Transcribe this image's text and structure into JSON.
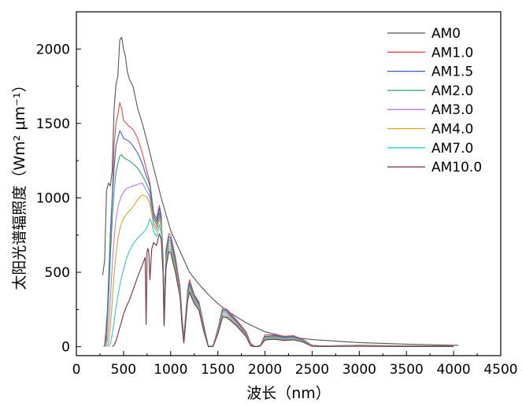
{
  "chart_data": {
    "type": "line",
    "title": "",
    "xlabel": "波长（nm）",
    "ylabel": "太阳光谱辐照度（Wm² μm⁻¹）",
    "xlim": [
      0,
      4500
    ],
    "ylim": [
      -60,
      2250
    ],
    "xticks": [
      0,
      500,
      1000,
      1500,
      2000,
      2500,
      3000,
      3500,
      4000,
      4500
    ],
    "yticks": [
      0,
      500,
      1000,
      1500,
      2000
    ],
    "grid": false,
    "legend_position": "top-right",
    "series": [
      {
        "name": "AM0",
        "color": "#555555",
        "x": [
          280,
          300,
          320,
          340,
          360,
          380,
          400,
          420,
          440,
          460,
          480,
          500,
          520,
          540,
          560,
          600,
          650,
          700,
          750,
          800,
          900,
          1000,
          1100,
          1200,
          1300,
          1400,
          1500,
          1600,
          1800,
          2000,
          2200,
          2500,
          3000,
          3500,
          4000,
          4050
        ],
        "y": [
          480,
          580,
          1050,
          1100,
          1080,
          1180,
          1600,
          1760,
          1820,
          2060,
          2080,
          2000,
          1950,
          1850,
          1800,
          1750,
          1600,
          1500,
          1380,
          1250,
          1000,
          780,
          640,
          500,
          420,
          350,
          290,
          240,
          160,
          100,
          70,
          48,
          28,
          17,
          10,
          10
        ]
      },
      {
        "name": "AM1.0",
        "color": "#e84a4a",
        "x": [
          290,
          300,
          330,
          360,
          380,
          400,
          420,
          440,
          460,
          480,
          500,
          530,
          560,
          600,
          650,
          700,
          740,
          760,
          780,
          800,
          820,
          850,
          880,
          900,
          920,
          930,
          950,
          980,
          1000,
          1050,
          1100,
          1120,
          1140,
          1180,
          1200,
          1250,
          1300,
          1350,
          1400,
          1450,
          1500,
          1550,
          1600,
          1700,
          1800,
          1850,
          1900,
          1950,
          2000,
          2100,
          2200,
          2300,
          2400,
          2500,
          2600,
          3000,
          3500,
          4000
        ],
        "y": [
          0,
          10,
          250,
          700,
          1000,
          1350,
          1500,
          1560,
          1640,
          1600,
          1520,
          1500,
          1480,
          1460,
          1400,
          1300,
          1200,
          1150,
          1100,
          1000,
          900,
          860,
          950,
          880,
          600,
          200,
          650,
          760,
          750,
          600,
          400,
          200,
          60,
          380,
          450,
          350,
          300,
          150,
          0,
          5,
          120,
          260,
          250,
          180,
          100,
          20,
          0,
          10,
          80,
          80,
          70,
          75,
          50,
          10,
          5,
          10,
          5,
          5
        ]
      },
      {
        "name": "AM1.5",
        "color": "#3a5fcd",
        "x": [
          300,
          320,
          340,
          360,
          380,
          400,
          420,
          440,
          460,
          480,
          500,
          530,
          560,
          600,
          650,
          700,
          740,
          760,
          780,
          800,
          820,
          850,
          880,
          900,
          920,
          930,
          950,
          980,
          1000,
          1050,
          1100,
          1120,
          1140,
          1180,
          1200,
          1250,
          1300,
          1350,
          1400,
          1450,
          1500,
          1550,
          1600,
          1700,
          1800,
          1850,
          1900,
          1950,
          2000,
          2100,
          2200,
          2300,
          2400,
          2500,
          2600,
          3000,
          3500,
          4000
        ],
        "y": [
          5,
          80,
          400,
          750,
          1000,
          1200,
          1350,
          1400,
          1450,
          1430,
          1400,
          1390,
          1380,
          1350,
          1300,
          1230,
          1150,
          1120,
          1080,
          980,
          880,
          840,
          930,
          860,
          580,
          190,
          630,
          740,
          730,
          580,
          380,
          190,
          50,
          370,
          430,
          340,
          290,
          140,
          0,
          5,
          110,
          250,
          240,
          170,
          90,
          15,
          0,
          8,
          70,
          75,
          65,
          70,
          45,
          8,
          5,
          8,
          4,
          4
        ]
      },
      {
        "name": "AM2.0",
        "color": "#2ea66e",
        "x": [
          300,
          320,
          340,
          360,
          380,
          400,
          420,
          440,
          460,
          480,
          500,
          530,
          560,
          600,
          650,
          700,
          740,
          760,
          780,
          800,
          820,
          850,
          880,
          900,
          920,
          930,
          950,
          980,
          1000,
          1050,
          1100,
          1120,
          1140,
          1180,
          1200,
          1250,
          1300,
          1350,
          1400,
          1450,
          1500,
          1550,
          1600,
          1700,
          1800,
          1850,
          1900,
          1950,
          2000,
          2100,
          2200,
          2300,
          2400,
          2500,
          2600,
          3000,
          3500,
          4000
        ],
        "y": [
          2,
          50,
          300,
          600,
          850,
          1050,
          1170,
          1230,
          1280,
          1290,
          1270,
          1260,
          1250,
          1230,
          1200,
          1150,
          1100,
          1070,
          1040,
          950,
          860,
          820,
          900,
          840,
          560,
          180,
          610,
          720,
          710,
          560,
          370,
          180,
          45,
          355,
          415,
          330,
          280,
          130,
          0,
          5,
          105,
          240,
          230,
          165,
          85,
          12,
          0,
          8,
          65,
          70,
          60,
          65,
          42,
          7,
          4,
          7,
          4,
          4
        ]
      },
      {
        "name": "AM3.0",
        "color": "#b77be6",
        "x": [
          310,
          330,
          350,
          370,
          390,
          410,
          430,
          450,
          470,
          500,
          530,
          560,
          600,
          650,
          700,
          740,
          760,
          780,
          800,
          820,
          850,
          880,
          900,
          920,
          930,
          950,
          980,
          1000,
          1050,
          1100,
          1120,
          1140,
          1180,
          1200,
          1250,
          1300,
          1350,
          1400,
          1450,
          1500,
          1550,
          1600,
          1700,
          1800,
          1850,
          1900,
          1950,
          2000,
          2100,
          2200,
          2300,
          2400,
          2500,
          2600,
          3000,
          3500,
          4000
        ],
        "y": [
          0,
          40,
          200,
          430,
          640,
          800,
          900,
          960,
          1000,
          1040,
          1060,
          1070,
          1080,
          1090,
          1100,
          1050,
          1030,
          1000,
          920,
          830,
          800,
          880,
          820,
          540,
          170,
          590,
          700,
          690,
          540,
          360,
          170,
          40,
          340,
          400,
          320,
          270,
          120,
          0,
          4,
          100,
          230,
          220,
          160,
          80,
          10,
          0,
          7,
          60,
          65,
          55,
          60,
          40,
          6,
          4,
          6,
          3,
          3
        ]
      },
      {
        "name": "AM4.0",
        "color": "#d6a520",
        "x": [
          320,
          340,
          360,
          380,
          400,
          420,
          440,
          460,
          480,
          500,
          530,
          560,
          600,
          650,
          700,
          740,
          760,
          780,
          800,
          820,
          850,
          880,
          900,
          920,
          930,
          950,
          980,
          1000,
          1050,
          1100,
          1120,
          1140,
          1180,
          1200,
          1250,
          1300,
          1350,
          1400,
          1450,
          1500,
          1550,
          1600,
          1700,
          1800,
          1850,
          1900,
          1950,
          2000,
          2100,
          2200,
          2300,
          2400,
          2500,
          2600,
          3000,
          3500,
          4000
        ],
        "y": [
          0,
          20,
          130,
          300,
          480,
          620,
          720,
          790,
          830,
          860,
          890,
          910,
          940,
          990,
          1020,
          1010,
          990,
          960,
          890,
          810,
          780,
          860,
          800,
          520,
          160,
          570,
          680,
          670,
          530,
          350,
          160,
          35,
          330,
          390,
          310,
          260,
          115,
          0,
          4,
          95,
          220,
          210,
          150,
          75,
          8,
          0,
          6,
          55,
          60,
          50,
          55,
          38,
          5,
          3,
          5,
          3,
          3
        ]
      },
      {
        "name": "AM7.0",
        "color": "#2ec9d6",
        "x": [
          340,
          360,
          380,
          400,
          420,
          440,
          460,
          480,
          500,
          530,
          560,
          600,
          650,
          700,
          740,
          760,
          780,
          800,
          820,
          850,
          880,
          900,
          920,
          930,
          950,
          980,
          1000,
          1050,
          1100,
          1120,
          1140,
          1180,
          1200,
          1250,
          1300,
          1350,
          1400,
          1450,
          1500,
          1550,
          1600,
          1700,
          1800,
          1850,
          1900,
          1950,
          2000,
          2100,
          2200,
          2300,
          2400,
          2500,
          2600,
          3000,
          3500,
          4000
        ],
        "y": [
          0,
          20,
          80,
          170,
          260,
          340,
          410,
          470,
          520,
          590,
          640,
          690,
          730,
          760,
          790,
          820,
          860,
          830,
          770,
          740,
          820,
          760,
          500,
          150,
          550,
          660,
          650,
          510,
          340,
          150,
          30,
          320,
          375,
          300,
          250,
          110,
          0,
          3,
          90,
          210,
          200,
          145,
          70,
          6,
          0,
          5,
          50,
          55,
          46,
          50,
          35,
          4,
          3,
          4,
          2,
          2
        ]
      },
      {
        "name": "AM10.0",
        "color": "#7a2f3a",
        "x": [
          380,
          400,
          420,
          440,
          460,
          480,
          500,
          530,
          560,
          600,
          650,
          700,
          730,
          740,
          750,
          760,
          770,
          780,
          800,
          820,
          850,
          880,
          900,
          920,
          930,
          950,
          980,
          1000,
          1050,
          1100,
          1120,
          1140,
          1180,
          1200,
          1250,
          1300,
          1350,
          1400,
          1450,
          1500,
          1550,
          1600,
          1700,
          1800,
          1850,
          1900,
          1950,
          2000,
          2100,
          2200,
          2300,
          2400,
          2500,
          2600,
          3000,
          3500,
          4000
        ],
        "y": [
          0,
          10,
          40,
          80,
          130,
          170,
          220,
          270,
          310,
          380,
          470,
          550,
          600,
          150,
          640,
          660,
          620,
          450,
          660,
          700,
          680,
          760,
          720,
          480,
          140,
          530,
          640,
          630,
          500,
          330,
          140,
          25,
          310,
          365,
          290,
          245,
          105,
          0,
          3,
          85,
          200,
          195,
          140,
          68,
          5,
          0,
          5,
          45,
          50,
          42,
          46,
          32,
          3,
          2,
          3,
          2,
          2
        ]
      }
    ]
  }
}
